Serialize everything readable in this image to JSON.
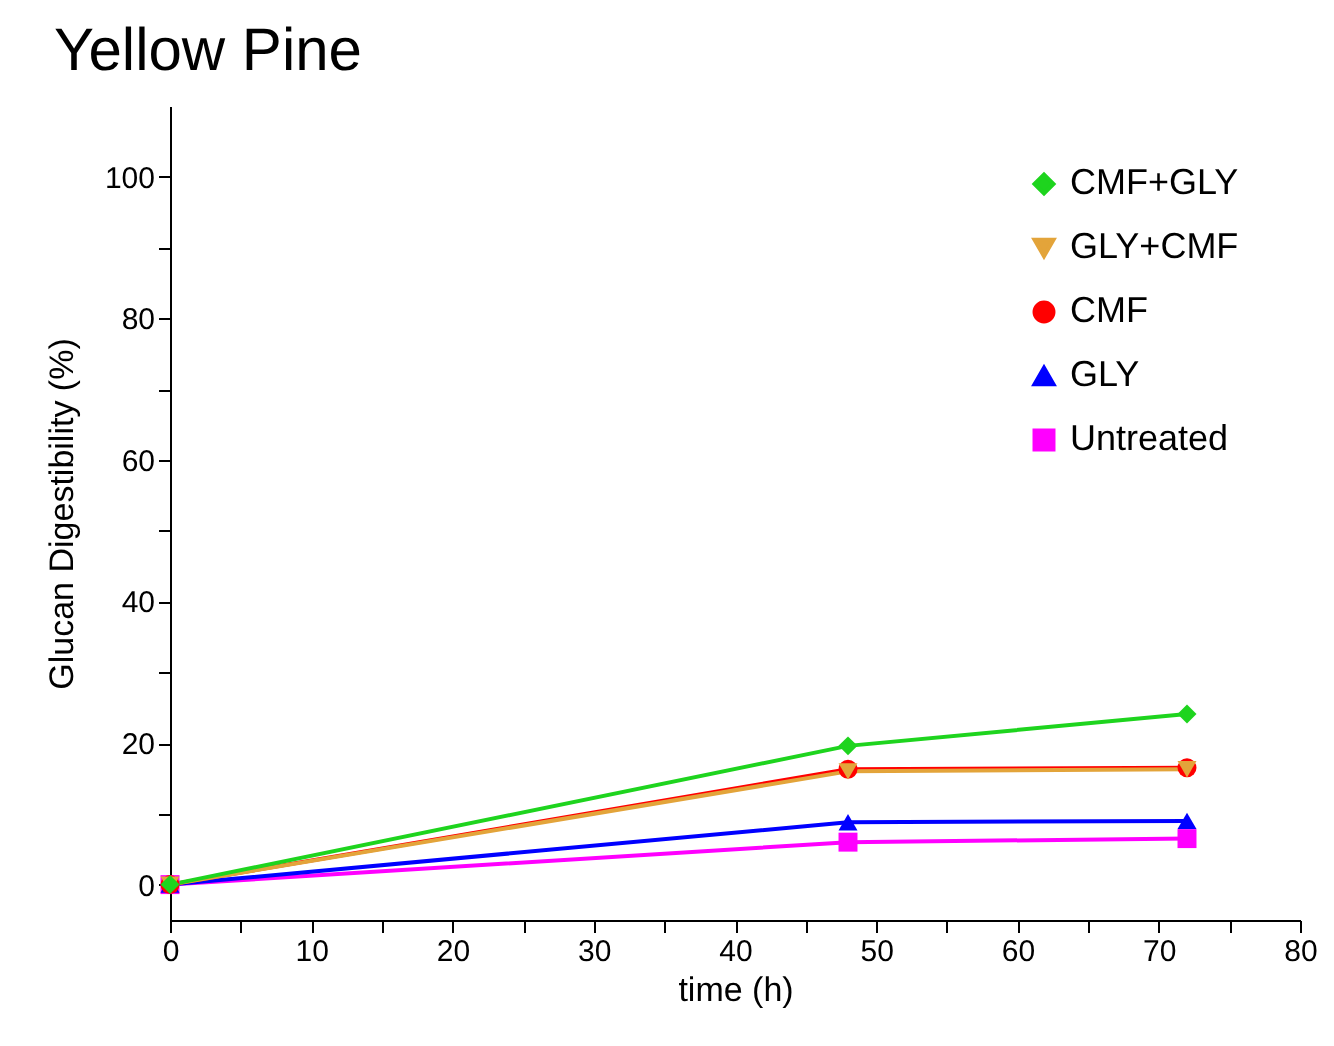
{
  "chart_data": {
    "type": "line",
    "title": "Yellow Pine",
    "xlabel": "time (h)",
    "ylabel": "Glucan Digestibility (%)",
    "x": [
      0,
      48,
      72
    ],
    "series": [
      {
        "name": "CMF+GLY",
        "color": "#1ed41e",
        "marker": "diamond",
        "values": [
          0,
          19.6,
          24.1
        ]
      },
      {
        "name": "GLY+CMF",
        "color": "#e3a43a",
        "marker": "triangle-down",
        "values": [
          0,
          16.0,
          16.3
        ]
      },
      {
        "name": "CMF",
        "color": "#ff0000",
        "marker": "circle",
        "values": [
          0,
          16.3,
          16.5
        ]
      },
      {
        "name": "GLY",
        "color": "#0000ff",
        "marker": "triangle-up",
        "values": [
          0,
          8.8,
          9.0
        ]
      },
      {
        "name": "Untreated",
        "color": "#ff00ff",
        "marker": "square",
        "values": [
          0,
          6.0,
          6.5
        ]
      }
    ],
    "xlim": [
      0,
      80
    ],
    "xticks": [
      0,
      {
        "value": 5,
        "label": null
      },
      10,
      {
        "value": 15,
        "label": null
      },
      20,
      {
        "value": 25,
        "label": null
      },
      30,
      {
        "value": 35,
        "label": null
      },
      40,
      {
        "value": 45,
        "label": null
      },
      50,
      {
        "value": 55,
        "label": null
      },
      60,
      {
        "value": 65,
        "label": null
      },
      70,
      {
        "value": 75,
        "label": null
      },
      80
    ],
    "ylim": [
      -5,
      110
    ],
    "yticks": [
      0,
      {
        "value": 10,
        "label": null
      },
      20,
      {
        "value": 30,
        "label": null
      },
      40,
      {
        "value": 50,
        "label": null
      },
      60,
      {
        "value": 70,
        "label": null
      },
      80,
      {
        "value": 90,
        "label": null
      },
      100
    ],
    "grid": false,
    "legend": "top right",
    "line_style": "solid"
  }
}
